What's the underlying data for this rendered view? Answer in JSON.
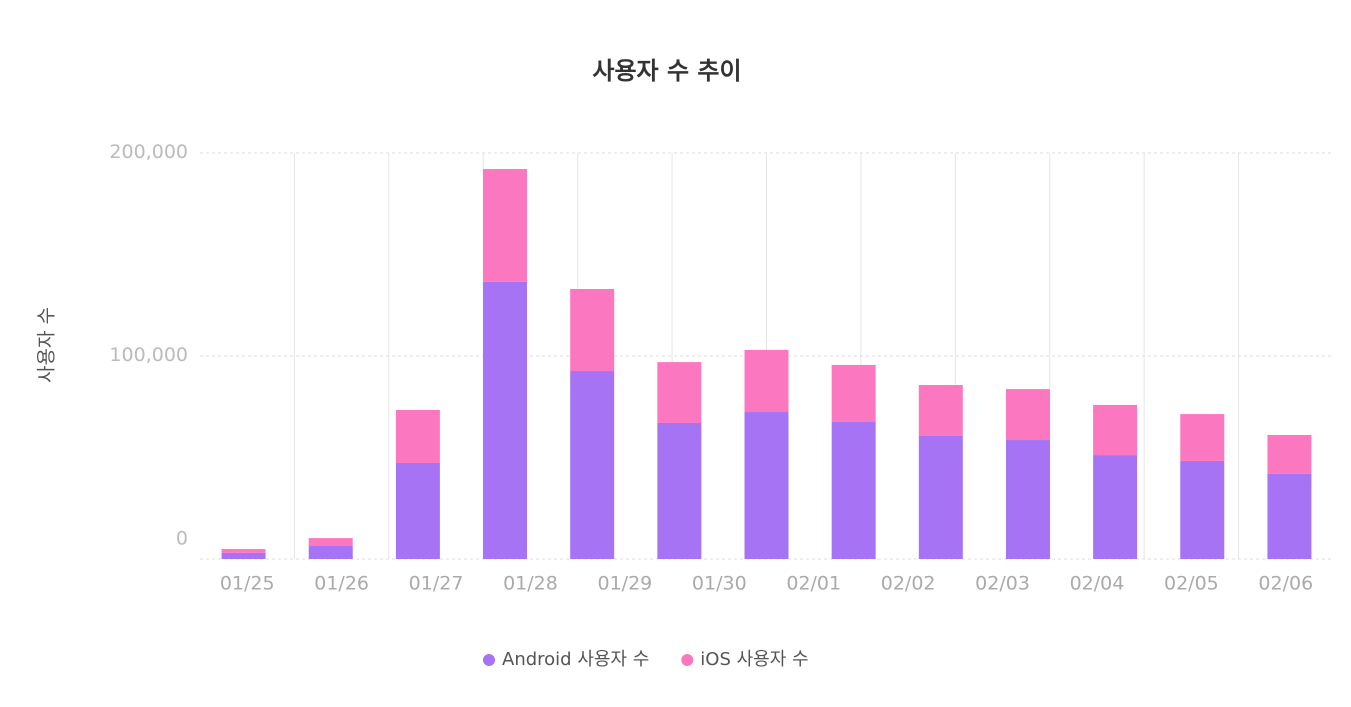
{
  "chart_data": {
    "type": "stacked_bar",
    "title": "사용자 수 추이",
    "y_label": "사용자 수",
    "categories": [
      "01/25",
      "01/26",
      "01/27",
      "01/28",
      "01/29",
      "01/30",
      null,
      "02/01",
      "02/02",
      "02/03",
      "02/04",
      "02/05",
      "02/06"
    ],
    "series": [
      {
        "name": "Android 사용자 수",
        "color": "#a673f5",
        "values": [
          3000,
          6400,
          47300,
          136500,
          92600,
          67000,
          72400,
          67500,
          60600,
          58600,
          51200,
          48300,
          41900
        ]
      },
      {
        "name": "iOS 사용자 수",
        "color": "#fb78c1",
        "values": [
          1900,
          3900,
          26100,
          55600,
          40400,
          30000,
          30600,
          28100,
          25100,
          25100,
          24700,
          23100,
          19200
        ]
      }
    ],
    "ylim": [
      0,
      200000
    ],
    "yticks": [
      0,
      {
        "value": 100000,
        "label": "100,000"
      },
      {
        "value": 200000,
        "label": "200,000"
      }
    ],
    "grid": true,
    "legend": "bottom"
  }
}
